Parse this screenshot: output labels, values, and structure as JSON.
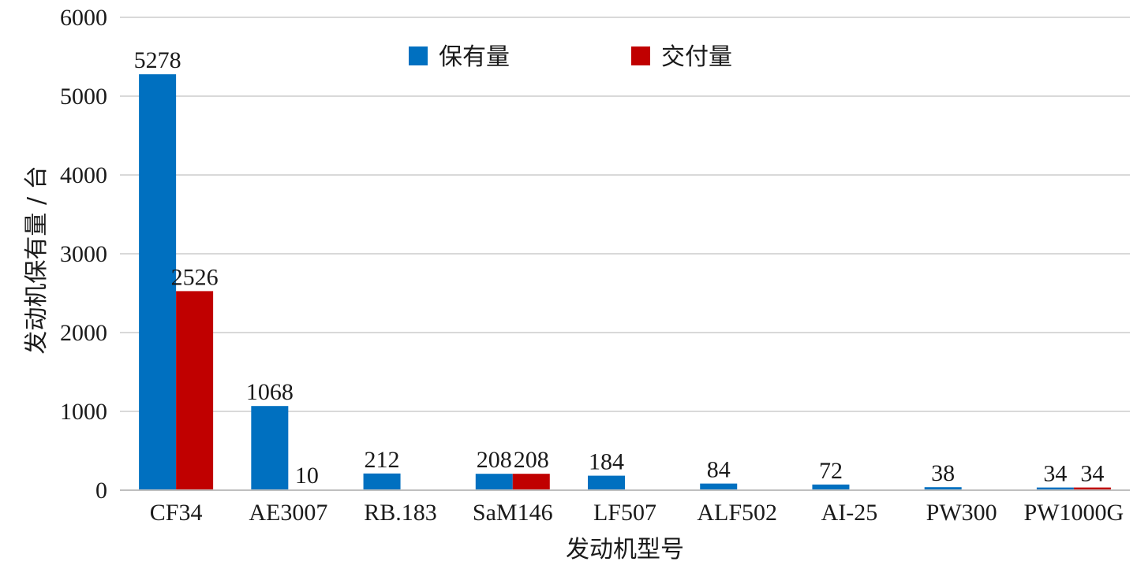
{
  "chart_data": {
    "type": "bar",
    "title": "",
    "xlabel": "发动机型号",
    "ylabel": "发动机保有量 / 台",
    "ylim": [
      0,
      6000
    ],
    "yticks": [
      0,
      1000,
      2000,
      3000,
      4000,
      5000,
      6000
    ],
    "grid": true,
    "legend_position": "top-center",
    "categories": [
      "CF34",
      "AE3007",
      "RB.183",
      "SaM146",
      "LF507",
      "ALF502",
      "AI-25",
      "PW300",
      "PW1000G"
    ],
    "series": [
      {
        "name": "保有量",
        "color": "#0070c0",
        "values": [
          5278,
          1068,
          212,
          208,
          184,
          84,
          72,
          38,
          34
        ]
      },
      {
        "name": "交付量",
        "color": "#c00000",
        "values": [
          2526,
          10,
          null,
          208,
          null,
          null,
          null,
          null,
          34
        ]
      }
    ]
  }
}
